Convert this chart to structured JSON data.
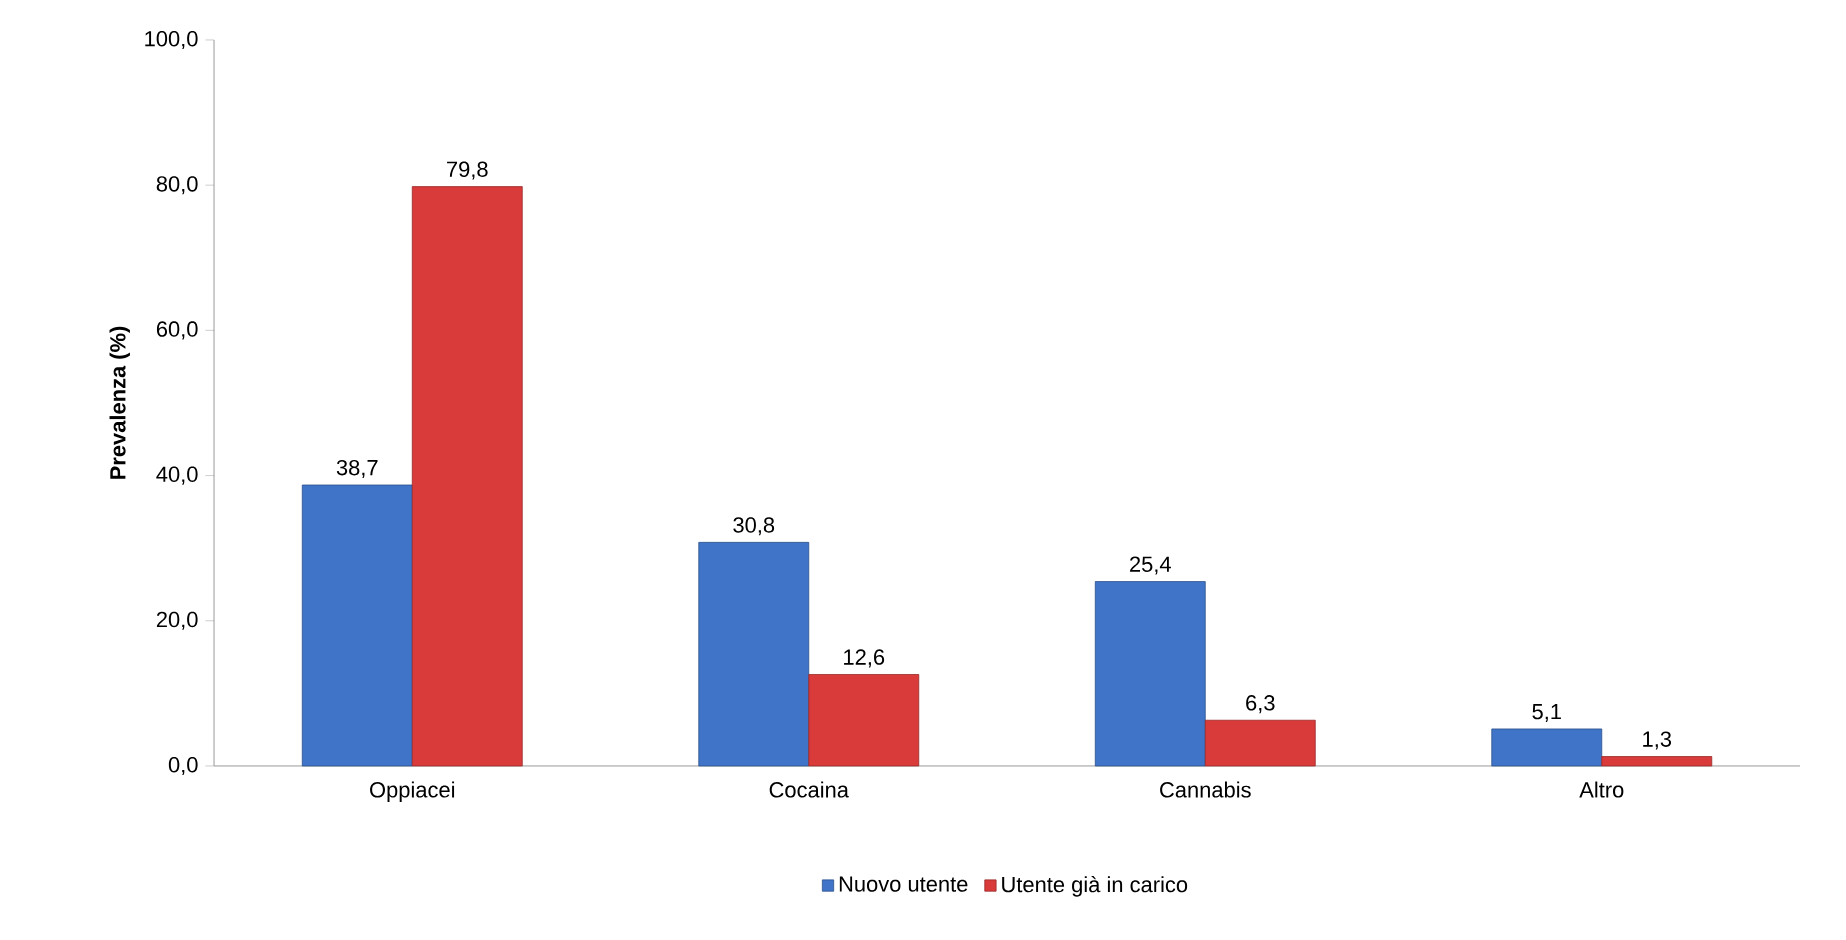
{
  "chart_data": {
    "type": "bar",
    "ylabel": "Prevalenza (%)",
    "categories": [
      "Oppiacei",
      "Cocaina",
      "Cannabis",
      "Altro"
    ],
    "series": [
      {
        "name": "Nuovo utente",
        "color": "#3f74c8",
        "values": [
          38.7,
          30.8,
          25.4,
          5.1
        ],
        "value_labels": [
          "38,7",
          "30,8",
          "25,4",
          "5,1"
        ]
      },
      {
        "name": "Utente già in carico",
        "color": "#d93a3a",
        "values": [
          79.8,
          12.6,
          6.3,
          1.3
        ],
        "value_labels": [
          "79,8",
          "12,6",
          "6,3",
          "1,3"
        ]
      }
    ],
    "ylim": [
      0,
      100
    ],
    "yticks": [
      {
        "value": 0,
        "label": "0,0"
      },
      {
        "value": 20,
        "label": "20,0"
      },
      {
        "value": 40,
        "label": "40,0"
      },
      {
        "value": 60,
        "label": "60,0"
      },
      {
        "value": 80,
        "label": "80,0"
      },
      {
        "value": 100,
        "label": "100,0"
      }
    ],
    "legend": "bottom"
  }
}
